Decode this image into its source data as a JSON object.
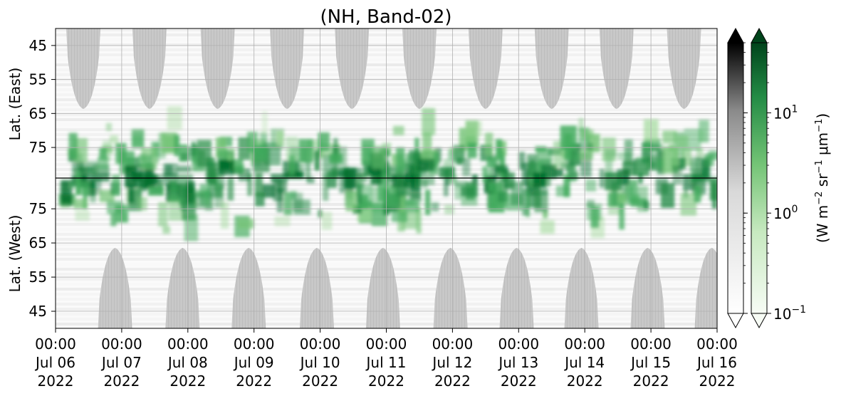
{
  "chart_data": {
    "type": "heatmap",
    "title": "(NH, Band-02)",
    "x_ticks": [
      {
        "label": [
          "00:00",
          "Jul 06",
          "2022"
        ]
      },
      {
        "label": [
          "00:00",
          "Jul 07",
          "2022"
        ]
      },
      {
        "label": [
          "00:00",
          "Jul 08",
          "2022"
        ]
      },
      {
        "label": [
          "00:00",
          "Jul 09",
          "2022"
        ]
      },
      {
        "label": [
          "00:00",
          "Jul 10",
          "2022"
        ]
      },
      {
        "label": [
          "00:00",
          "Jul 11",
          "2022"
        ]
      },
      {
        "label": [
          "00:00",
          "Jul 12",
          "2022"
        ]
      },
      {
        "label": [
          "00:00",
          "Jul 13",
          "2022"
        ]
      },
      {
        "label": [
          "00:00",
          "Jul 14",
          "2022"
        ]
      },
      {
        "label": [
          "00:00",
          "Jul 15",
          "2022"
        ]
      },
      {
        "label": [
          "00:00",
          "Jul 16",
          "2022"
        ]
      }
    ],
    "x_range": [
      "2022-07-06 00:00",
      "2022-07-16 00:00"
    ],
    "y_upper": {
      "label": "Lat. (East)",
      "ticks": [
        "45",
        "55",
        "65",
        "75"
      ],
      "range": [
        40,
        84
      ]
    },
    "y_lower": {
      "label": "Lat. (West)",
      "ticks": [
        "75",
        "65",
        "55",
        "45"
      ],
      "range": [
        84,
        40
      ]
    },
    "colorbar": {
      "label": "(W m$^{-2}$ sr$^{-1}$ $\\mu$m$^{-1}$)",
      "label_parts": [
        "(W m",
        "−2",
        " sr",
        "−1",
        " μm",
        "−1",
        ")"
      ],
      "scale": "log",
      "range": [
        0.1,
        50
      ],
      "tick_labels": [
        {
          "base": "10",
          "exp": "1"
        },
        {
          "base": "10",
          "exp": "0"
        },
        {
          "base": "10",
          "exp": "−1"
        }
      ],
      "colormaps": [
        "Greys",
        "Greens"
      ],
      "extend": "both"
    },
    "grid": true,
    "colors": {
      "green_dark": "#00441b",
      "green_light": "#f7fcf5",
      "grey_dark": "#000000",
      "grey_light": "#ffffff",
      "nodata": "#c8c8c8"
    }
  }
}
